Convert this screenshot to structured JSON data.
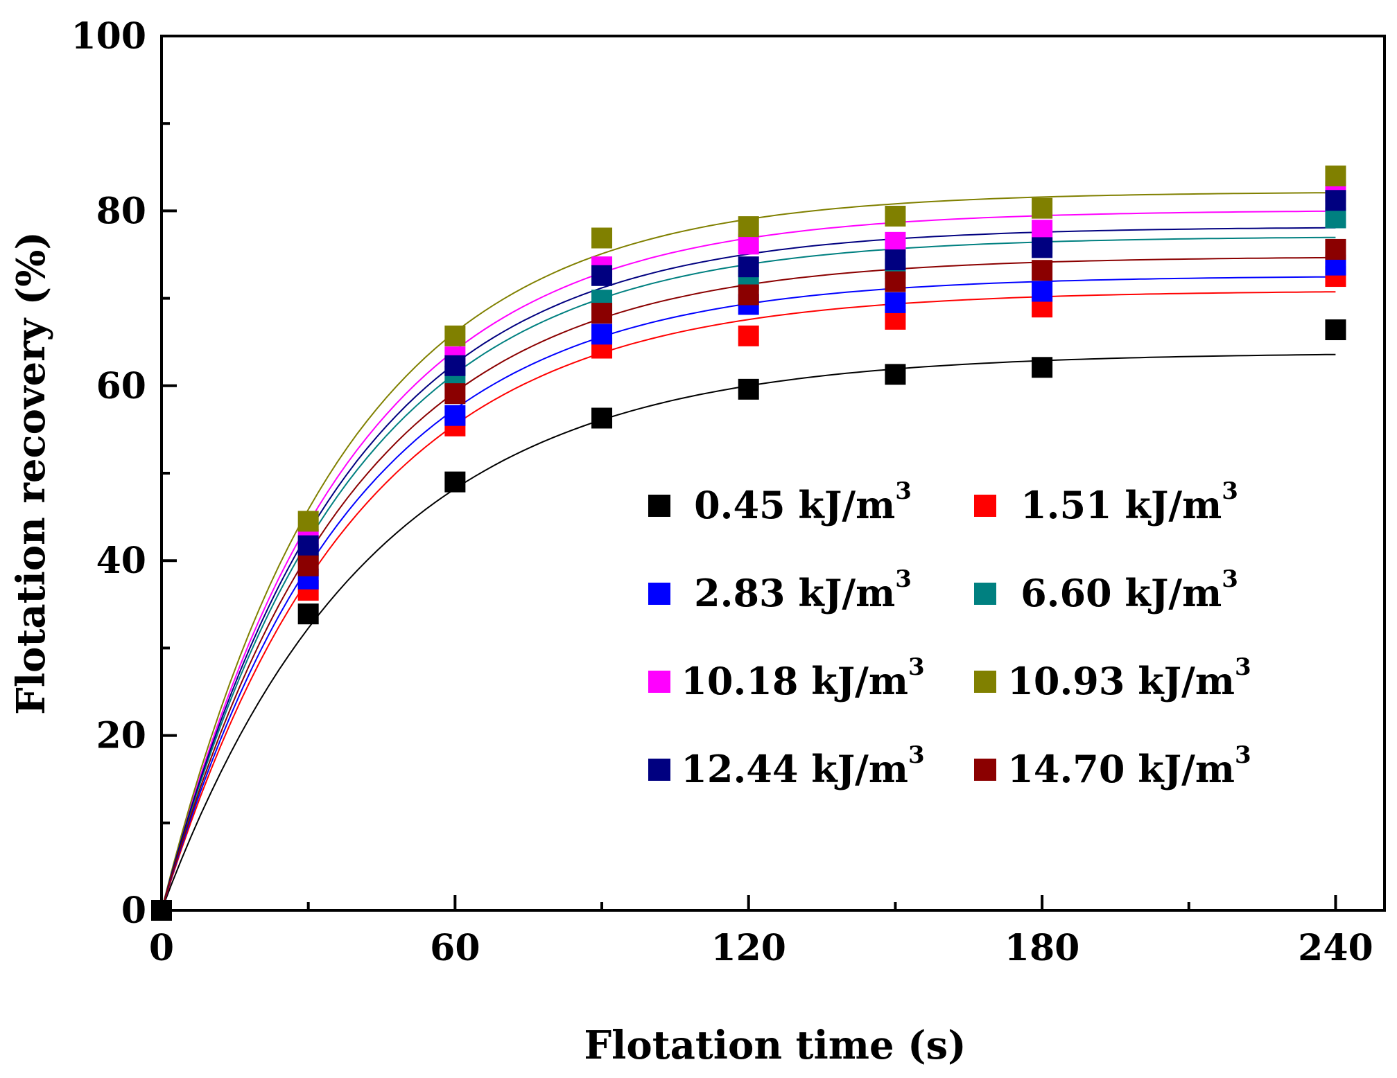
{
  "chart_data": {
    "type": "scatter",
    "title": "",
    "xlabel": "Flotation time (s)",
    "ylabel": "Flotation recovery (%)",
    "xlim": [
      0,
      250
    ],
    "ylim": [
      0,
      100
    ],
    "xticks": [
      0,
      60,
      120,
      180,
      240
    ],
    "yticks": [
      0,
      20,
      40,
      60,
      80,
      100
    ],
    "x_minor_ticks": [
      30,
      90,
      150,
      210
    ],
    "y_minor_ticks": [
      10,
      30,
      50,
      70,
      90
    ],
    "grid": false,
    "legend_position": "lower-right",
    "legend_unit": "kJ/m",
    "legend_unit_superscript": "3",
    "fit": "first-order kinetic curve R = Rmax(1 - e^(-k t))",
    "x": [
      0,
      30,
      60,
      90,
      120,
      150,
      180,
      240
    ],
    "series": [
      {
        "name": "0.45",
        "color": "#000000",
        "values": [
          0,
          33.9,
          49.0,
          56.3,
          59.6,
          61.3,
          62.1,
          66.4
        ],
        "fit_rmax": 63.8,
        "fit_k": 0.0235
      },
      {
        "name": "1.51",
        "color": "#ff0000",
        "values": [
          0,
          36.6,
          55.4,
          64.3,
          65.7,
          67.6,
          69.0,
          72.5
        ],
        "fit_rmax": 70.9,
        "fit_k": 0.0255
      },
      {
        "name": "2.83",
        "color": "#0000ff",
        "values": [
          0,
          37.9,
          56.6,
          65.9,
          69.3,
          69.5,
          70.8,
          73.8
        ],
        "fit_rmax": 72.6,
        "fit_k": 0.026
      },
      {
        "name": "6.60",
        "color": "#008080",
        "values": [
          0,
          40.7,
          61.1,
          69.8,
          72.1,
          73.4,
          76.3,
          79.2
        ],
        "fit_rmax": 77.1,
        "fit_k": 0.0265
      },
      {
        "name": "10.18",
        "color": "#ff00ff",
        "values": [
          0,
          42.4,
          63.3,
          73.6,
          76.2,
          76.4,
          77.8,
          82.2
        ],
        "fit_rmax": 80.1,
        "fit_k": 0.0268
      },
      {
        "name": "10.93",
        "color": "#808000",
        "values": [
          0,
          44.5,
          65.7,
          76.9,
          78.2,
          79.4,
          80.3,
          84.0
        ],
        "fit_rmax": 82.2,
        "fit_k": 0.0272
      },
      {
        "name": "12.44",
        "color": "#000080",
        "values": [
          0,
          41.7,
          62.3,
          72.6,
          73.6,
          74.4,
          75.8,
          81.2
        ],
        "fit_rmax": 78.2,
        "fit_k": 0.0268
      },
      {
        "name": "14.70",
        "color": "#8b0000",
        "values": [
          0,
          39.4,
          59.1,
          68.3,
          70.4,
          71.9,
          73.2,
          75.6
        ],
        "fit_rmax": 74.8,
        "fit_k": 0.0262
      }
    ]
  }
}
